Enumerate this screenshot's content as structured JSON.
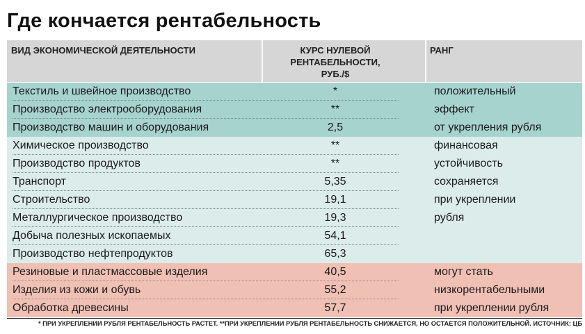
{
  "title": "Где кончается рентабельность",
  "columns": {
    "activity": "ВИД ЭКОНОМИЧЕСКОЙ ДЕЯТЕЛЬНОСТИ",
    "rate_line1": "КУРС НУЛЕВОЙ",
    "rate_line2": "РЕНТАБЕЛЬНОСТИ,",
    "rate_line3": "РУБ./$",
    "rank": "РАНГ"
  },
  "groups": [
    {
      "color": "#a7d3cf",
      "rows": [
        {
          "activity": "Текстиль и швейное производство",
          "rate": "*",
          "rank": "положительный"
        },
        {
          "activity": "Производство электрооборудования",
          "rate": "**",
          "rank": "эффект"
        },
        {
          "activity": "Производство машин и оборудования",
          "rate": "2,5",
          "rank": "от укрепления рубля"
        }
      ]
    },
    {
      "color": "#dcecea",
      "rows": [
        {
          "activity": "Химическое производство",
          "rate": "**",
          "rank": "финансовая"
        },
        {
          "activity": "Производство продуктов",
          "rate": "**",
          "rank": "устойчивость"
        },
        {
          "activity": "Транспорт",
          "rate": "5,35",
          "rank": "сохраняется"
        },
        {
          "activity": "Строительство",
          "rate": "19,1",
          "rank": "при укреплении"
        },
        {
          "activity": "Металлургическое производство",
          "rate": "19,3",
          "rank": "рубля"
        },
        {
          "activity": "Добыча полезных ископаемых",
          "rate": "54,1",
          "rank": ""
        },
        {
          "activity": "Производство нефтепродуктов",
          "rate": "65,3",
          "rank": ""
        }
      ]
    },
    {
      "color": "#f0c0b4",
      "rows": [
        {
          "activity": "Резиновые и пластмассовые изделия",
          "rate": "40,5",
          "rank": "могут стать"
        },
        {
          "activity": "Изделия из кожи и обувь",
          "rate": "55,2",
          "rank": "низкорентабельными"
        },
        {
          "activity": "Обработка древесины",
          "rate": "57,7",
          "rank": "при укреплении рубля"
        }
      ]
    }
  ],
  "footnote": "* ПРИ УКРЕПЛЕНИИ РУБЛЯ РЕНТАБЕЛЬНОСТЬ РАСТЕТ. **ПРИ УКРЕПЛЕНИИ РУБЛЯ РЕНТАБЕЛЬНОСТЬ СНИЖАЕТСЯ, НО ОСТАЕТСЯ ПОЛОЖИТЕЛЬНОЙ. ИСТОЧНИК: ЦБ"
}
